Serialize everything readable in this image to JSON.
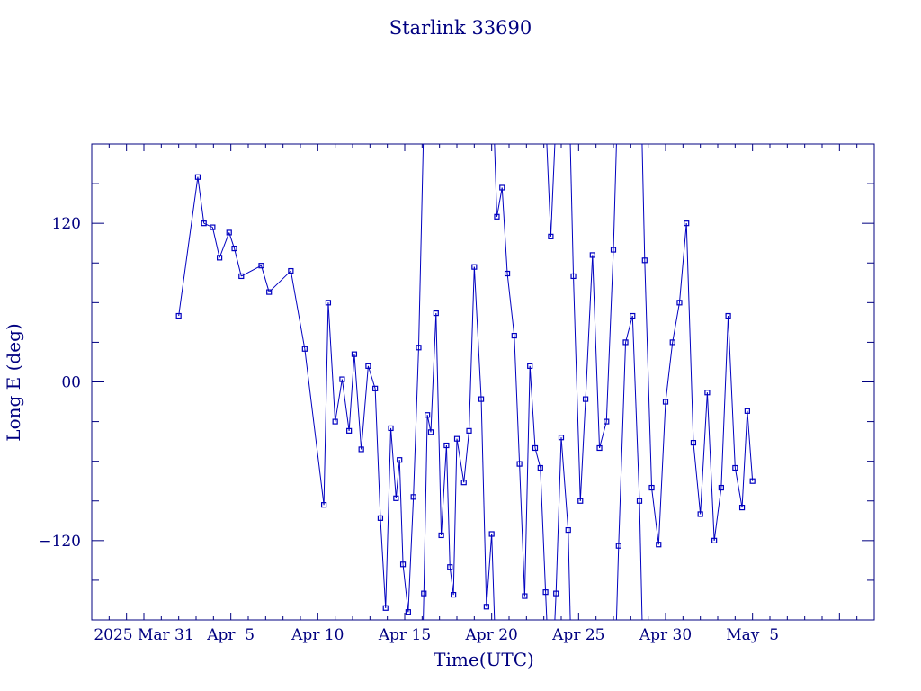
{
  "chart_data": {
    "type": "line",
    "title": "Starlink 33690",
    "xlabel": "Time(UTC)",
    "ylabel": "Long E (deg)",
    "x_unit": "days",
    "xlim": [
      "2025-03-28",
      "2025-05-12"
    ],
    "ylim": [
      -180,
      180
    ],
    "grid": false,
    "legend": "none",
    "color": "#0000c0",
    "axis_color": "#000080",
    "x_tick_labels": [
      {
        "label": "2025 Mar 31",
        "date": "2025-03-31"
      },
      {
        "label": "Apr  5",
        "date": "2025-04-05"
      },
      {
        "label": "Apr 10",
        "date": "2025-04-10"
      },
      {
        "label": "Apr 15",
        "date": "2025-04-15"
      },
      {
        "label": "Apr 20",
        "date": "2025-04-20"
      },
      {
        "label": "Apr 25",
        "date": "2025-04-25"
      },
      {
        "label": "Apr 30",
        "date": "2025-04-30"
      },
      {
        "label": "May  5",
        "date": "2025-05-05"
      }
    ],
    "y_tick_labels": [
      {
        "label": "120",
        "value": 120
      },
      {
        "label": "00",
        "value": 0
      },
      {
        "label": "−120",
        "value": -120
      }
    ],
    "series": [
      {
        "x": [
          "2025-04-02 00:00",
          "2025-04-03 02:24",
          "2025-04-03 10:48",
          "2025-04-03 22:48",
          "2025-04-04 08:24",
          "2025-04-04 21:36",
          "2025-04-05 04:48",
          "2025-04-05 14:24",
          "2025-04-06 18:00",
          "2025-04-07 04:48",
          "2025-04-08 10:48",
          "2025-04-09 06:00",
          "2025-04-10 08:24",
          "2025-04-10 14:24",
          "2025-04-11 00:00",
          "2025-04-11 09:36",
          "2025-04-11 19:12",
          "2025-04-12 02:24",
          "2025-04-12 12:00",
          "2025-04-12 21:36",
          "2025-04-13 07:12",
          "2025-04-13 14:24",
          "2025-04-13 21:36",
          "2025-04-14 04:48",
          "2025-04-14 12:00",
          "2025-04-14 16:48",
          "2025-04-14 21:36",
          "2025-04-15 04:48",
          "2025-04-15 12:00",
          "2025-04-15 19:12",
          "2025-04-16 02:24",
          "2025-04-16 07:12",
          "2025-04-16 12:00",
          "2025-04-16 19:12",
          "2025-04-17 02:24",
          "2025-04-17 09:36",
          "2025-04-17 14:24",
          "2025-04-17 19:12",
          "2025-04-18 00:00",
          "2025-04-18 09:36",
          "2025-04-18 16:48",
          "2025-04-19 00:00",
          "2025-04-19 09:36",
          "2025-04-19 16:48",
          "2025-04-20 00:00",
          "2025-04-20 07:12",
          "2025-04-20 14:24",
          "2025-04-20 21:36",
          "2025-04-21 07:12",
          "2025-04-21 14:24",
          "2025-04-21 21:36",
          "2025-04-22 04:48",
          "2025-04-22 12:00",
          "2025-04-22 19:12",
          "2025-04-23 02:24",
          "2025-04-23 09:36",
          "2025-04-23 16:48",
          "2025-04-24 00:00",
          "2025-04-24 09:36",
          "2025-04-24 16:48",
          "2025-04-25 02:24",
          "2025-04-25 09:36",
          "2025-04-25 19:12",
          "2025-04-26 04:48",
          "2025-04-26 14:24",
          "2025-04-27 00:00",
          "2025-04-27 07:12",
          "2025-04-27 16:48",
          "2025-04-28 02:24",
          "2025-04-28 12:00",
          "2025-04-28 19:12",
          "2025-04-29 04:48",
          "2025-04-29 14:24",
          "2025-04-30 00:00",
          "2025-04-30 09:36",
          "2025-04-30 19:12",
          "2025-05-01 04:48",
          "2025-05-01 14:24",
          "2025-05-02 00:00",
          "2025-05-02 09:36",
          "2025-05-02 19:12",
          "2025-05-03 04:48",
          "2025-05-03 14:24",
          "2025-05-04 00:00",
          "2025-05-04 09:36",
          "2025-05-04 16:48",
          "2025-05-05 00:00"
        ],
        "y": [
          50,
          155,
          120,
          117,
          94,
          113,
          101,
          80,
          88,
          68,
          84,
          25,
          -93,
          60,
          -30,
          2,
          -37,
          21,
          -51,
          12,
          -5,
          -103,
          -171,
          -35,
          -88,
          -59,
          -138,
          -174,
          -87,
          26,
          -160,
          -25,
          -38,
          52,
          -116,
          -48,
          -140,
          -161,
          -43,
          -76,
          -37,
          87,
          -13,
          -170,
          -115,
          125,
          147,
          82,
          35,
          -62,
          -162,
          12,
          -50,
          -65,
          -159,
          110,
          -160,
          -42,
          -112,
          80,
          -90,
          -13,
          96,
          -50,
          -30,
          100,
          -124,
          30,
          50,
          -90,
          92,
          -80,
          -123,
          -15,
          30,
          60,
          120,
          -46,
          -100,
          -8,
          -120,
          -80,
          50,
          -65,
          -95,
          -22,
          -75
        ]
      }
    ]
  }
}
